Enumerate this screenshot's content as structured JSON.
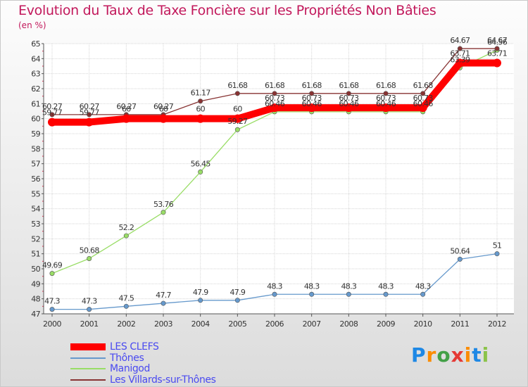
{
  "title": "Evolution du Taux de Taxe Foncière sur les Propriétés Non Bâties",
  "unit_label": "(en %)",
  "logo": {
    "text": "Proxiti",
    "letters": [
      "P",
      "r",
      "o",
      "x",
      "i",
      "t",
      "i"
    ],
    "colors": [
      "#1e88e5",
      "#fb8c00",
      "#43a047",
      "#e53935",
      "#fb8c00",
      "#1e88e5",
      "#8bc34a"
    ]
  },
  "chart_data": {
    "type": "line",
    "categories": [
      "2000",
      "2001",
      "2002",
      "2003",
      "2004",
      "2005",
      "2006",
      "2007",
      "2008",
      "2009",
      "2010",
      "2011",
      "2012"
    ],
    "ylim": [
      47,
      65
    ],
    "yticks": [
      "47",
      "48",
      "49",
      "50",
      "51",
      "52",
      "53",
      "54",
      "55",
      "56",
      "57",
      "58",
      "59",
      "60",
      "61",
      "62",
      "63",
      "64",
      "65"
    ],
    "grid": true,
    "legend_position": "bottom-left",
    "series": [
      {
        "name": "LES CLEFS",
        "color": "#ff0000",
        "values": [
          59.77,
          59.77,
          60.0,
          60.0,
          60.0,
          60.0,
          60.73,
          60.73,
          60.73,
          60.73,
          60.73,
          63.71,
          63.71
        ],
        "labels": [
          "59.77",
          "59.77",
          "60",
          "60",
          "60",
          "60",
          "60.73",
          "60.73",
          "60.73",
          "60.73",
          "60.73",
          "63.71",
          "63.71"
        ]
      },
      {
        "name": "Thônes",
        "color": "#6699cc",
        "values": [
          47.3,
          47.3,
          47.5,
          47.7,
          47.9,
          47.9,
          48.3,
          48.3,
          48.3,
          48.3,
          48.3,
          50.64,
          51.0
        ],
        "labels": [
          "47.3",
          "47.3",
          "47.5",
          "47.7",
          "47.9",
          "47.9",
          "48.3",
          "48.3",
          "48.3",
          "48.3",
          "48.3",
          "50.64",
          "51"
        ]
      },
      {
        "name": "Manigod",
        "color": "#99dd66",
        "values": [
          49.69,
          50.68,
          52.2,
          53.76,
          56.45,
          59.27,
          60.46,
          60.46,
          60.46,
          60.46,
          60.46,
          63.39,
          64.56
        ],
        "labels": [
          "49.69",
          "50.68",
          "52.2",
          "53.76",
          "56.45",
          "59.27",
          "60.46",
          "60.46",
          "60.46",
          "60.46",
          "60.46",
          "63.39",
          "64.56"
        ]
      },
      {
        "name": "Les Villards-sur-Thônes",
        "color": "#883333",
        "values": [
          60.27,
          60.27,
          60.27,
          60.27,
          61.17,
          61.68,
          61.68,
          61.68,
          61.68,
          61.68,
          61.68,
          64.67,
          64.67
        ],
        "labels": [
          "60.27",
          "60.27",
          "60.27",
          "60.27",
          "61.17",
          "61.68",
          "61.68",
          "61.68",
          "61.68",
          "61.68",
          "61.68",
          "64.67",
          "64.67"
        ]
      }
    ]
  }
}
